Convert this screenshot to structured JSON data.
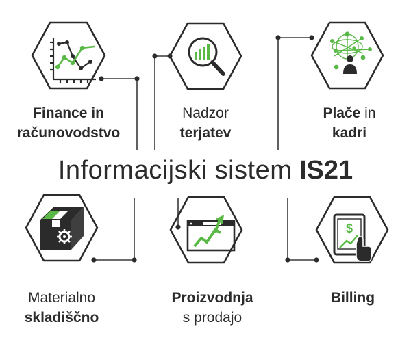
{
  "title": {
    "main": "Informacijski sistem",
    "bold": "IS21"
  },
  "modules": [
    {
      "icon": "finance-chart-icon",
      "line1": "Finance in",
      "line2": "računovodstvo"
    },
    {
      "icon": "magnifier-chart-icon",
      "line1": "Nadzor",
      "line2": "terjatev"
    },
    {
      "icon": "network-person-icon",
      "line1_bold": "Plače",
      "line1_rest": " in",
      "line2": "kadri"
    },
    {
      "icon": "package-gear-icon",
      "line1": "Materialno",
      "line2": "skladiščno"
    },
    {
      "icon": "browser-growth-icon",
      "line1": "Proizvodnja",
      "line2": "s prodajo"
    },
    {
      "icon": "tablet-billing-icon",
      "line1": "Billing"
    }
  ],
  "colors": {
    "accent": "#5ab946",
    "dark": "#2b2b2b",
    "line": "#3a3a3a"
  }
}
